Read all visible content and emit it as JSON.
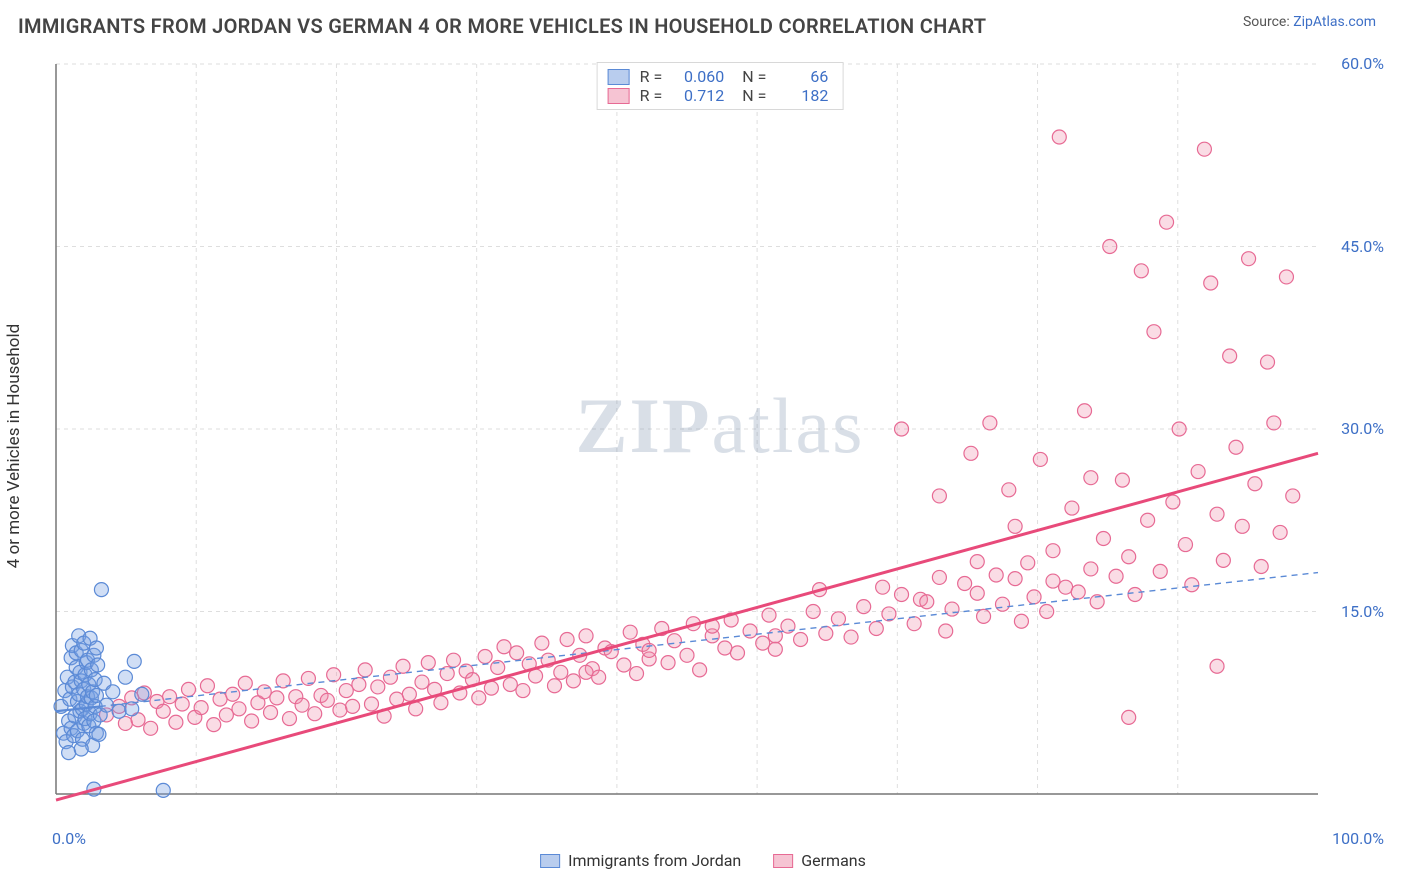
{
  "title": "IMMIGRANTS FROM JORDAN VS GERMAN 4 OR MORE VEHICLES IN HOUSEHOLD CORRELATION CHART",
  "source_label": "Source:",
  "source_name": "ZipAtlas.com",
  "y_axis_label": "4 or more Vehicles in Household",
  "watermark_bold": "ZIP",
  "watermark_rest": "atlas",
  "chart": {
    "type": "scatter",
    "background_color": "#ffffff",
    "xlim": [
      0,
      100
    ],
    "ylim": [
      0,
      60
    ],
    "x_ticks": [
      0,
      100
    ],
    "x_tick_labels": [
      "0.0%",
      "100.0%"
    ],
    "y_ticks": [
      15,
      30,
      45,
      60
    ],
    "y_tick_labels": [
      "15.0%",
      "30.0%",
      "45.0%",
      "60.0%"
    ],
    "grid_color": "#dedede",
    "grid_dash": "4,4",
    "axis_line_color": "#777777",
    "marker_radius": 7,
    "marker_stroke_width": 1.2,
    "label_fontsize": 16,
    "tick_color": "#3d6fc6",
    "series": [
      {
        "name": "Immigrants from Jordan",
        "key": "jordan",
        "fill": "rgba(120,160,225,0.35)",
        "stroke": "#5b8ad6",
        "swatch_fill": "#b9cdee",
        "swatch_border": "#5b8ad6",
        "R": "0.060",
        "N": "66",
        "trend": {
          "x1": 0,
          "y1": 6.8,
          "x2": 100,
          "y2": 18.2,
          "color": "#5b8ad6",
          "width": 1.4,
          "dash": "6,5"
        },
        "trend_solid_to_x": 3.5,
        "points": [
          [
            0.4,
            7.2
          ],
          [
            0.6,
            5.0
          ],
          [
            0.7,
            8.5
          ],
          [
            0.8,
            4.3
          ],
          [
            0.9,
            9.6
          ],
          [
            1.0,
            6.0
          ],
          [
            1.1,
            7.8
          ],
          [
            1.2,
            11.2
          ],
          [
            1.2,
            5.4
          ],
          [
            1.3,
            8.8
          ],
          [
            1.3,
            12.2
          ],
          [
            1.4,
            4.8
          ],
          [
            1.5,
            9.2
          ],
          [
            1.5,
            6.4
          ],
          [
            1.6,
            10.4
          ],
          [
            1.6,
            11.6
          ],
          [
            1.7,
            7.6
          ],
          [
            1.7,
            5.2
          ],
          [
            1.8,
            13.0
          ],
          [
            1.8,
            8.2
          ],
          [
            1.9,
            6.8
          ],
          [
            1.9,
            10.0
          ],
          [
            2.0,
            9.3
          ],
          [
            2.0,
            11.8
          ],
          [
            2.1,
            4.5
          ],
          [
            2.1,
            7.0
          ],
          [
            2.2,
            8.6
          ],
          [
            2.2,
            12.4
          ],
          [
            2.2,
            5.8
          ],
          [
            2.3,
            9.8
          ],
          [
            2.3,
            6.2
          ],
          [
            2.4,
            10.8
          ],
          [
            2.4,
            7.4
          ],
          [
            2.5,
            8.0
          ],
          [
            2.5,
            11.0
          ],
          [
            2.6,
            5.6
          ],
          [
            2.6,
            9.0
          ],
          [
            2.7,
            12.8
          ],
          [
            2.7,
            6.6
          ],
          [
            2.8,
            7.9
          ],
          [
            2.8,
            10.2
          ],
          [
            2.9,
            8.4
          ],
          [
            2.9,
            4.0
          ],
          [
            3.0,
            11.4
          ],
          [
            3.0,
            6.0
          ],
          [
            3.1,
            9.4
          ],
          [
            3.1,
            7.2
          ],
          [
            3.2,
            12.0
          ],
          [
            3.2,
            5.0
          ],
          [
            3.2,
            8.1
          ],
          [
            3.3,
            10.6
          ],
          [
            3.5,
            6.5
          ],
          [
            3.6,
            16.8
          ],
          [
            3.8,
            9.1
          ],
          [
            4.0,
            7.3
          ],
          [
            4.5,
            8.4
          ],
          [
            5.0,
            6.8
          ],
          [
            5.5,
            9.6
          ],
          [
            6.0,
            7.0
          ],
          [
            6.2,
            10.9
          ],
          [
            6.8,
            8.2
          ],
          [
            1.0,
            3.4
          ],
          [
            2.0,
            3.7
          ],
          [
            3.4,
            4.9
          ],
          [
            8.5,
            0.3
          ],
          [
            3.0,
            0.4
          ]
        ]
      },
      {
        "name": "Germans",
        "key": "germans",
        "fill": "rgba(240,140,170,0.30)",
        "stroke": "#e76a94",
        "swatch_fill": "#f6c4d3",
        "swatch_border": "#e76a94",
        "R": "0.712",
        "N": "182",
        "trend": {
          "x1": 0,
          "y1": -0.5,
          "x2": 100,
          "y2": 28.0,
          "color": "#e84a7a",
          "width": 3.0,
          "dash": ""
        },
        "points": [
          [
            4,
            6.5
          ],
          [
            5,
            7.2
          ],
          [
            5.5,
            5.8
          ],
          [
            6,
            7.9
          ],
          [
            6.5,
            6.1
          ],
          [
            7,
            8.3
          ],
          [
            7.5,
            5.4
          ],
          [
            8,
            7.6
          ],
          [
            8.5,
            6.8
          ],
          [
            9,
            8.0
          ],
          [
            9.5,
            5.9
          ],
          [
            10,
            7.4
          ],
          [
            10.5,
            8.6
          ],
          [
            11,
            6.3
          ],
          [
            11.5,
            7.1
          ],
          [
            12,
            8.9
          ],
          [
            12.5,
            5.7
          ],
          [
            13,
            7.8
          ],
          [
            13.5,
            6.5
          ],
          [
            14,
            8.2
          ],
          [
            14.5,
            7.0
          ],
          [
            15,
            9.1
          ],
          [
            15.5,
            6.0
          ],
          [
            16,
            7.5
          ],
          [
            16.5,
            8.4
          ],
          [
            17,
            6.7
          ],
          [
            17.5,
            7.9
          ],
          [
            18,
            9.3
          ],
          [
            18.5,
            6.2
          ],
          [
            19,
            8.0
          ],
          [
            19.5,
            7.3
          ],
          [
            20,
            9.5
          ],
          [
            20.5,
            6.6
          ],
          [
            21,
            8.1
          ],
          [
            21.5,
            7.7
          ],
          [
            22,
            9.8
          ],
          [
            22.5,
            6.9
          ],
          [
            23,
            8.5
          ],
          [
            23.5,
            7.2
          ],
          [
            24,
            9.0
          ],
          [
            24.5,
            10.2
          ],
          [
            25,
            7.4
          ],
          [
            25.5,
            8.8
          ],
          [
            26,
            6.4
          ],
          [
            26.5,
            9.6
          ],
          [
            27,
            7.8
          ],
          [
            27.5,
            10.5
          ],
          [
            28,
            8.2
          ],
          [
            28.5,
            7.0
          ],
          [
            29,
            9.2
          ],
          [
            29.5,
            10.8
          ],
          [
            30,
            8.6
          ],
          [
            30.5,
            7.5
          ],
          [
            31,
            9.9
          ],
          [
            31.5,
            11.0
          ],
          [
            32,
            8.3
          ],
          [
            32.5,
            10.1
          ],
          [
            33,
            9.4
          ],
          [
            33.5,
            7.9
          ],
          [
            34,
            11.3
          ],
          [
            34.5,
            8.7
          ],
          [
            35,
            10.4
          ],
          [
            35.5,
            12.1
          ],
          [
            36,
            9.0
          ],
          [
            36.5,
            11.6
          ],
          [
            37,
            8.5
          ],
          [
            37.5,
            10.7
          ],
          [
            38,
            9.7
          ],
          [
            38.5,
            12.4
          ],
          [
            39,
            11.0
          ],
          [
            39.5,
            8.9
          ],
          [
            40,
            10.0
          ],
          [
            40.5,
            12.7
          ],
          [
            41,
            9.3
          ],
          [
            41.5,
            11.4
          ],
          [
            42,
            13.0
          ],
          [
            42.5,
            10.3
          ],
          [
            43,
            9.6
          ],
          [
            43.5,
            12.0
          ],
          [
            44,
            11.7
          ],
          [
            45,
            10.6
          ],
          [
            45.5,
            13.3
          ],
          [
            46,
            9.9
          ],
          [
            46.5,
            12.3
          ],
          [
            47,
            11.1
          ],
          [
            48,
            13.6
          ],
          [
            48.5,
            10.8
          ],
          [
            49,
            12.6
          ],
          [
            50,
            11.4
          ],
          [
            50.5,
            14.0
          ],
          [
            51,
            10.2
          ],
          [
            52,
            13.0
          ],
          [
            53,
            12.0
          ],
          [
            53.5,
            14.3
          ],
          [
            54,
            11.6
          ],
          [
            55,
            13.4
          ],
          [
            56,
            12.4
          ],
          [
            56.5,
            14.7
          ],
          [
            57,
            11.9
          ],
          [
            58,
            13.8
          ],
          [
            59,
            12.7
          ],
          [
            60,
            15.0
          ],
          [
            60.5,
            16.8
          ],
          [
            61,
            13.2
          ],
          [
            62,
            14.4
          ],
          [
            63,
            12.9
          ],
          [
            64,
            15.4
          ],
          [
            65,
            13.6
          ],
          [
            65.5,
            17.0
          ],
          [
            66,
            14.8
          ],
          [
            67,
            30.0
          ],
          [
            68,
            14.0
          ],
          [
            68.5,
            16.0
          ],
          [
            69,
            15.8
          ],
          [
            70,
            24.5
          ],
          [
            70.5,
            13.4
          ],
          [
            71,
            15.2
          ],
          [
            72,
            17.3
          ],
          [
            72.5,
            28.0
          ],
          [
            73,
            16.5
          ],
          [
            73.5,
            14.6
          ],
          [
            74,
            30.5
          ],
          [
            74.5,
            18.0
          ],
          [
            75,
            15.6
          ],
          [
            75.5,
            25.0
          ],
          [
            76,
            17.7
          ],
          [
            76.5,
            14.2
          ],
          [
            77,
            19.0
          ],
          [
            77.5,
            16.2
          ],
          [
            78,
            27.5
          ],
          [
            78.5,
            15.0
          ],
          [
            79,
            20.0
          ],
          [
            79.5,
            54.0
          ],
          [
            80,
            17.0
          ],
          [
            80.5,
            23.5
          ],
          [
            81,
            16.6
          ],
          [
            81.5,
            31.5
          ],
          [
            82,
            18.5
          ],
          [
            82.5,
            15.8
          ],
          [
            83,
            21.0
          ],
          [
            83.5,
            45.0
          ],
          [
            84,
            17.9
          ],
          [
            84.5,
            25.8
          ],
          [
            85,
            19.5
          ],
          [
            85.5,
            16.4
          ],
          [
            86,
            43.0
          ],
          [
            86.5,
            22.5
          ],
          [
            87,
            38.0
          ],
          [
            87.5,
            18.3
          ],
          [
            88,
            47.0
          ],
          [
            88.5,
            24.0
          ],
          [
            89,
            30.0
          ],
          [
            89.5,
            20.5
          ],
          [
            90,
            17.2
          ],
          [
            90.5,
            26.5
          ],
          [
            91,
            53.0
          ],
          [
            91.5,
            42.0
          ],
          [
            92,
            23.0
          ],
          [
            92.5,
            19.2
          ],
          [
            93,
            36.0
          ],
          [
            93.5,
            28.5
          ],
          [
            94,
            22.0
          ],
          [
            94.5,
            44.0
          ],
          [
            95,
            25.5
          ],
          [
            95.5,
            18.7
          ],
          [
            96,
            35.5
          ],
          [
            96.5,
            30.5
          ],
          [
            97,
            21.5
          ],
          [
            97.5,
            42.5
          ],
          [
            98,
            24.5
          ],
          [
            85,
            6.3
          ],
          [
            92,
            10.5
          ],
          [
            67,
            16.4
          ],
          [
            70,
            17.8
          ],
          [
            73,
            19.1
          ],
          [
            76,
            22.0
          ],
          [
            79,
            17.5
          ],
          [
            82,
            26.0
          ],
          [
            42,
            10.0
          ],
          [
            47,
            11.8
          ],
          [
            52,
            13.8
          ],
          [
            57,
            13.0
          ]
        ]
      }
    ],
    "legend_top": {
      "R_label": "R =",
      "N_label": "N ="
    },
    "legend_bottom_labels": [
      "Immigrants from Jordan",
      "Germans"
    ]
  }
}
